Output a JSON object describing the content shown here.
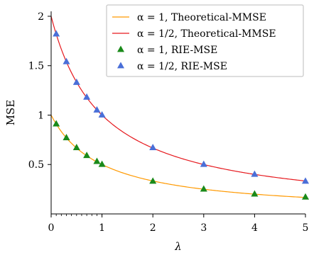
{
  "chart_data": {
    "type": "line",
    "xlabel": "λ",
    "ylabel": "MSE",
    "xlim": [
      0,
      5
    ],
    "ylim": [
      0,
      2.05
    ],
    "x_ticks": [
      0,
      1,
      2,
      3,
      4,
      5
    ],
    "y_ticks": [
      0.5,
      1,
      1.5,
      2
    ],
    "x_tick_labels": [
      "0",
      "1",
      "2",
      "3",
      "4",
      "5"
    ],
    "y_tick_labels": [
      "0.5",
      "1",
      "1.5",
      "2"
    ],
    "grid": false,
    "legend_position": "top-right",
    "series": [
      {
        "name": "α = 1, Theoretical-MMSE",
        "kind": "line",
        "color": "#ff9900",
        "function": "1/(1+x)",
        "x": [
          0,
          0.5,
          1,
          1.5,
          2,
          2.5,
          3,
          3.5,
          4,
          4.5,
          5
        ],
        "values": [
          1,
          0.667,
          0.5,
          0.4,
          0.333,
          0.286,
          0.25,
          0.222,
          0.2,
          0.182,
          0.167
        ]
      },
      {
        "name": "α = 1/2, Theoretical-MMSE",
        "kind": "line",
        "color": "#e6191e",
        "function": "2/(1+x)",
        "x": [
          0,
          0.5,
          1,
          1.5,
          2,
          2.5,
          3,
          3.5,
          4,
          4.5,
          5
        ],
        "values": [
          2,
          1.333,
          1,
          0.8,
          0.667,
          0.571,
          0.5,
          0.444,
          0.4,
          0.364,
          0.333
        ]
      },
      {
        "name": "α = 1, RIE-MSE",
        "kind": "scatter",
        "marker": "triangle",
        "color": "#1a8a1a",
        "x": [
          0.1,
          0.3,
          0.5,
          0.7,
          0.9,
          1,
          2,
          3,
          4,
          5
        ],
        "values": [
          0.91,
          0.77,
          0.67,
          0.59,
          0.53,
          0.5,
          0.33,
          0.25,
          0.2,
          0.17
        ]
      },
      {
        "name": "α = 1/2, RIE-MSE",
        "kind": "scatter",
        "marker": "triangle",
        "color": "#4a6fd8",
        "x": [
          0.1,
          0.3,
          0.5,
          0.7,
          0.9,
          1,
          2,
          3,
          4,
          5
        ],
        "values": [
          1.82,
          1.54,
          1.33,
          1.18,
          1.05,
          1.0,
          0.67,
          0.5,
          0.4,
          0.33
        ]
      }
    ]
  }
}
